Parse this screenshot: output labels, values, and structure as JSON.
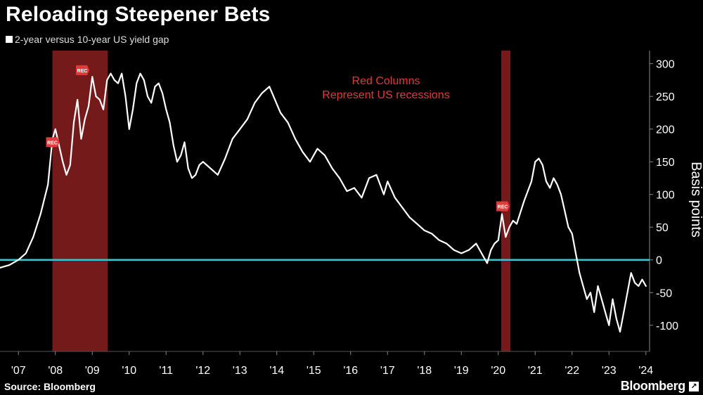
{
  "page": {
    "title": "Reloading Steepener Bets",
    "source": "Source: Bloomberg",
    "brand": "Bloomberg"
  },
  "colors": {
    "background": "#000000",
    "line": "#ffffff",
    "zero_line": "#33c8d8",
    "recession": "#8a1f1f",
    "annotation": "#e03a3a"
  },
  "icons": {
    "brand_arrow": "arrow-up-right-icon",
    "rec_marker": "rec-flag-icon"
  },
  "chart_data": {
    "type": "line",
    "title": "Reloading Steepener Bets",
    "ylabel": "Basis points",
    "y_axis_side": "right",
    "ylim": [
      -140,
      320
    ],
    "yticks": [
      300,
      250,
      200,
      150,
      100,
      50,
      0,
      -50,
      -100
    ],
    "xlim": [
      2006.5,
      2024.1
    ],
    "xticks": [
      {
        "label": "'07",
        "x": 2007.0
      },
      {
        "label": "'08",
        "x": 2008.0
      },
      {
        "label": "'09",
        "x": 2009.0
      },
      {
        "label": "'10",
        "x": 2010.0
      },
      {
        "label": "'11",
        "x": 2011.0
      },
      {
        "label": "'12",
        "x": 2012.0
      },
      {
        "label": "'13",
        "x": 2013.0
      },
      {
        "label": "'14",
        "x": 2014.0
      },
      {
        "label": "'15",
        "x": 2015.0
      },
      {
        "label": "'16",
        "x": 2016.0
      },
      {
        "label": "'17",
        "x": 2017.0
      },
      {
        "label": "'18",
        "x": 2018.0
      },
      {
        "label": "'19",
        "x": 2019.0
      },
      {
        "label": "'20",
        "x": 2020.0
      },
      {
        "label": "'21",
        "x": 2021.0
      },
      {
        "label": "'22",
        "x": 2022.0
      },
      {
        "label": "'23",
        "x": 2023.0
      },
      {
        "label": "'24",
        "x": 2024.0
      }
    ],
    "reference_line": {
      "y": 0
    },
    "legend": {
      "position": "top-left",
      "entries": [
        "2-year versus 10-year US yield gap"
      ]
    },
    "annotation": {
      "lines": [
        "Red Columns",
        "Represent US recessions"
      ]
    },
    "recessions": [
      {
        "start": 2007.92,
        "end": 2009.42
      },
      {
        "start": 2020.08,
        "end": 2020.33
      }
    ],
    "rec_markers": [
      {
        "label": "REC",
        "x": 2007.92,
        "y": 180
      },
      {
        "label": "REC",
        "x": 2008.73,
        "y": 290
      },
      {
        "label": "REC",
        "x": 2020.12,
        "y": 82
      }
    ],
    "series": [
      {
        "name": "2-year versus 10-year US yield gap",
        "x": [
          2006.5,
          2006.75,
          2007.0,
          2007.2,
          2007.4,
          2007.6,
          2007.8,
          2007.92,
          2008.0,
          2008.1,
          2008.2,
          2008.3,
          2008.4,
          2008.5,
          2008.6,
          2008.7,
          2008.8,
          2008.9,
          2009.0,
          2009.1,
          2009.2,
          2009.3,
          2009.4,
          2009.5,
          2009.6,
          2009.7,
          2009.8,
          2009.9,
          2010.0,
          2010.1,
          2010.2,
          2010.3,
          2010.4,
          2010.5,
          2010.6,
          2010.7,
          2010.8,
          2010.9,
          2011.0,
          2011.1,
          2011.2,
          2011.3,
          2011.4,
          2011.5,
          2011.6,
          2011.7,
          2011.8,
          2011.9,
          2012.0,
          2012.2,
          2012.4,
          2012.6,
          2012.8,
          2013.0,
          2013.2,
          2013.4,
          2013.6,
          2013.8,
          2013.95,
          2014.1,
          2014.3,
          2014.5,
          2014.7,
          2014.9,
          2015.1,
          2015.3,
          2015.5,
          2015.7,
          2015.9,
          2016.1,
          2016.3,
          2016.5,
          2016.7,
          2016.9,
          2017.0,
          2017.2,
          2017.4,
          2017.6,
          2017.8,
          2018.0,
          2018.2,
          2018.4,
          2018.6,
          2018.8,
          2019.0,
          2019.2,
          2019.4,
          2019.6,
          2019.7,
          2019.8,
          2019.9,
          2020.0,
          2020.1,
          2020.2,
          2020.3,
          2020.4,
          2020.5,
          2020.7,
          2020.9,
          2021.0,
          2021.1,
          2021.2,
          2021.3,
          2021.4,
          2021.5,
          2021.6,
          2021.7,
          2021.8,
          2021.9,
          2022.0,
          2022.1,
          2022.2,
          2022.3,
          2022.4,
          2022.5,
          2022.6,
          2022.7,
          2022.8,
          2022.9,
          2023.0,
          2023.1,
          2023.2,
          2023.3,
          2023.4,
          2023.5,
          2023.6,
          2023.7,
          2023.8,
          2023.9,
          2024.0
        ],
        "values": [
          -12,
          -8,
          0,
          10,
          35,
          70,
          115,
          185,
          200,
          175,
          150,
          130,
          145,
          210,
          245,
          185,
          215,
          235,
          280,
          250,
          245,
          230,
          275,
          285,
          275,
          270,
          285,
          250,
          200,
          230,
          270,
          285,
          275,
          250,
          240,
          265,
          270,
          255,
          230,
          210,
          175,
          150,
          160,
          180,
          140,
          125,
          130,
          145,
          150,
          140,
          130,
          155,
          185,
          200,
          215,
          240,
          255,
          265,
          245,
          225,
          210,
          185,
          165,
          150,
          170,
          160,
          140,
          125,
          105,
          110,
          95,
          125,
          130,
          100,
          120,
          95,
          80,
          65,
          55,
          45,
          40,
          30,
          25,
          15,
          10,
          15,
          25,
          5,
          -5,
          15,
          25,
          30,
          70,
          35,
          50,
          60,
          55,
          90,
          120,
          150,
          155,
          145,
          120,
          110,
          125,
          115,
          100,
          75,
          50,
          40,
          10,
          -20,
          -40,
          -60,
          -50,
          -80,
          -40,
          -60,
          -80,
          -100,
          -60,
          -90,
          -110,
          -80,
          -50,
          -20,
          -35,
          -40,
          -30,
          -40
        ]
      }
    ]
  }
}
